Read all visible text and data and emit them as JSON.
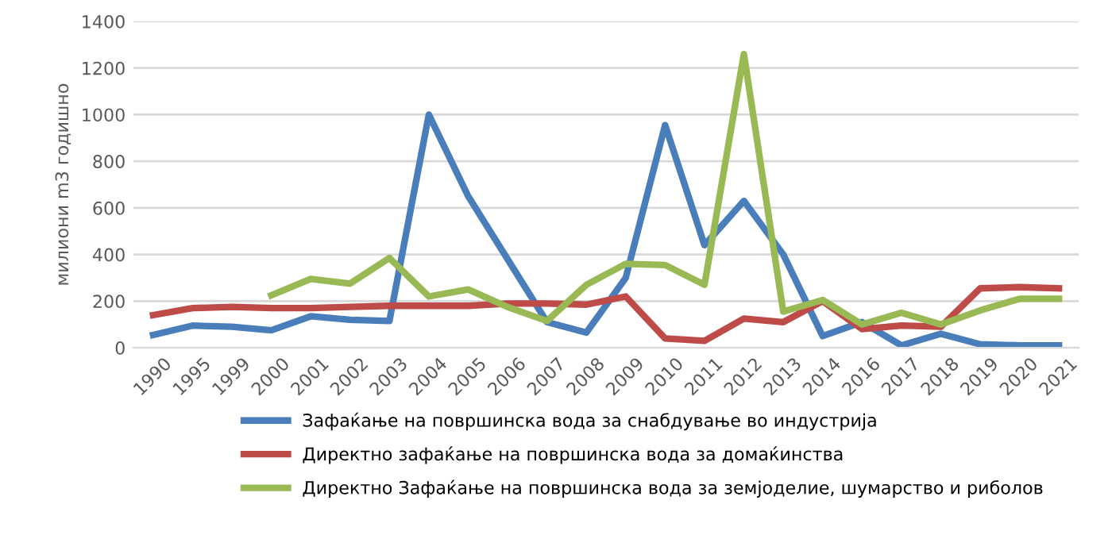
{
  "chart_data": {
    "type": "line",
    "ylabel": "милиони m3 годишно",
    "categories": [
      "1990",
      "1995",
      "1999",
      "2000",
      "2001",
      "2002",
      "2003",
      "2004",
      "2005",
      "2006",
      "2007",
      "2008",
      "2009",
      "2010",
      "2011",
      "2012",
      "2013",
      "2014",
      "2016",
      "2017",
      "2018",
      "2019",
      "2020",
      "2021"
    ],
    "series": [
      {
        "name": "Зафаќање на површинска вода за снабдување во индустрија",
        "color": "#4a7ebb",
        "values": [
          55,
          95,
          90,
          75,
          135,
          120,
          115,
          1000,
          650,
          380,
          110,
          65,
          300,
          955,
          440,
          630,
          400,
          50,
          110,
          10,
          60,
          15,
          10,
          10
        ]
      },
      {
        "name": "Директно зафаќање на површинска вода за домаќинства",
        "color": "#be4b48",
        "values": [
          140,
          170,
          175,
          170,
          170,
          175,
          180,
          180,
          180,
          190,
          190,
          185,
          220,
          40,
          30,
          125,
          110,
          200,
          80,
          95,
          90,
          255,
          260,
          255
        ]
      },
      {
        "name": "Директно Зафаќање на површинска вода за земјоделие, шумарство и риболов",
        "color": "#98b954",
        "values": [
          null,
          null,
          null,
          225,
          295,
          275,
          385,
          220,
          250,
          175,
          115,
          270,
          360,
          355,
          270,
          1260,
          155,
          205,
          100,
          150,
          100,
          160,
          210,
          210
        ]
      }
    ],
    "ylim": [
      0,
      1400
    ],
    "yticks": [
      0,
      200,
      400,
      600,
      800,
      1000,
      1200,
      1400
    ],
    "grid": "y",
    "legend": "bottom",
    "marker": "none",
    "line_style": "solid"
  }
}
